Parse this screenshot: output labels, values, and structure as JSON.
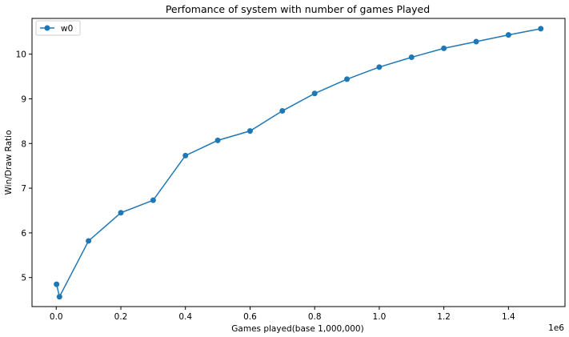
{
  "chart_data": {
    "type": "line",
    "title": "Perfomance of system with number of games Played",
    "xlabel": "Games played(base 1,000,000)",
    "ylabel": "Win/Draw Ratio",
    "x_offset_label": "1e6",
    "xlim": [
      -75000,
      1575000
    ],
    "ylim": [
      4.35,
      10.8
    ],
    "xticks": [
      0,
      200000,
      400000,
      600000,
      800000,
      1000000,
      1200000,
      1400000
    ],
    "xtick_labels": [
      "0.0",
      "0.2",
      "0.4",
      "0.6",
      "0.8",
      "1.0",
      "1.2",
      "1.4"
    ],
    "yticks": [
      5,
      6,
      7,
      8,
      9,
      10
    ],
    "ytick_labels": [
      "5",
      "6",
      "7",
      "8",
      "9",
      "10"
    ],
    "grid": false,
    "legend_position": "top-left",
    "series": [
      {
        "name": "w0",
        "color": "#1f77b4",
        "marker": "circle",
        "x": [
          1000,
          10000,
          100000,
          200000,
          300000,
          400000,
          500000,
          600000,
          700000,
          800000,
          900000,
          1000000,
          1100000,
          1200000,
          1300000,
          1400000,
          1500000
        ],
        "y": [
          4.85,
          4.57,
          5.82,
          6.45,
          6.73,
          7.73,
          8.07,
          8.28,
          8.73,
          9.12,
          9.44,
          9.71,
          9.93,
          10.13,
          10.28,
          10.43,
          10.57
        ]
      }
    ]
  }
}
